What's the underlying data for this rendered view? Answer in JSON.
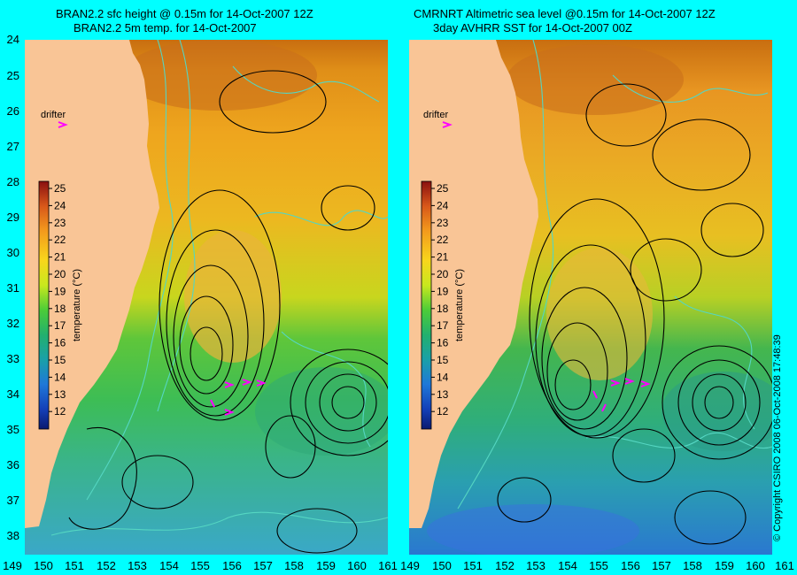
{
  "left_panel": {
    "title_line1": "BRAN2.2 sfc height @ 0.15m for 14-Oct-2007 12Z",
    "title_line2": "BRAN2.2 5m temp. for 14-Oct-2007",
    "drifter_label": "drifter",
    "colorbar_label": "temperature (°C)"
  },
  "right_panel": {
    "title_line1": "CMRNRT Altimetric sea level  @0.15m  for 14-Oct-2007 12Z",
    "title_line2": "3day AVHRR SST for 14-Oct-2007 00Z",
    "drifter_label": "drifter",
    "colorbar_label": "temperature (°C)"
  },
  "y_ticks": [
    "24",
    "25",
    "26",
    "27",
    "28",
    "29",
    "30",
    "31",
    "32",
    "33",
    "34",
    "35",
    "36",
    "37",
    "38"
  ],
  "x_ticks": [
    "149",
    "150",
    "151",
    "152",
    "153",
    "154",
    "155",
    "156",
    "157",
    "158",
    "159",
    "160",
    "161"
  ],
  "colorbar_ticks": [
    "25",
    "24",
    "23",
    "22",
    "21",
    "20",
    "19",
    "18",
    "17",
    "16",
    "15",
    "14",
    "13",
    "12"
  ],
  "copyright": "© Copyright CSIRO 2008   06-Oct-2008 17:48:39",
  "colors": {
    "background": "#00ffff",
    "land": "#f9c596",
    "sst_contour": "#55d6c2",
    "height_contour": "#000000",
    "drifter_marker": "#ff00ff"
  }
}
